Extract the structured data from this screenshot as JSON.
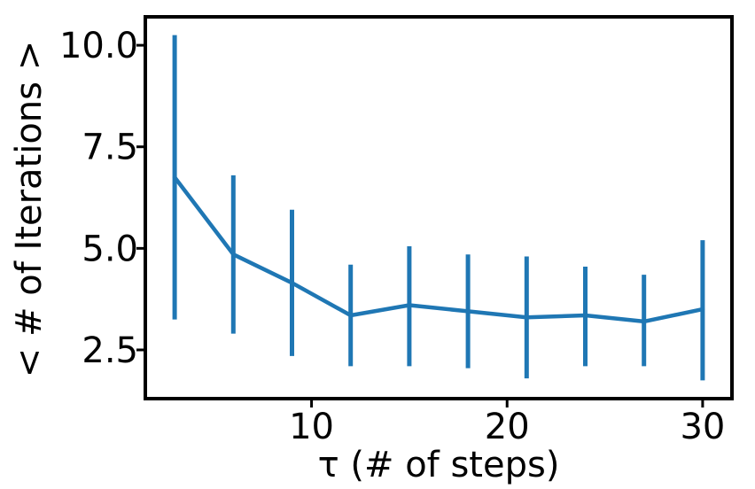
{
  "chart_data": {
    "type": "line",
    "title": "",
    "xlabel": "τ (# of steps)",
    "ylabel": "< # of Iterations >",
    "xlim": [
      1.5,
      31.5
    ],
    "ylim": [
      1.3,
      10.7
    ],
    "xticks": [
      10,
      20,
      30
    ],
    "xtick_labels": [
      "10",
      "20",
      "30"
    ],
    "yticks": [
      2.5,
      5.0,
      7.5,
      10.0
    ],
    "ytick_labels": [
      "2.5",
      "5.0",
      "7.5",
      "10.0"
    ],
    "grid": false,
    "legend": "none",
    "series": [
      {
        "color": "#1f77b4",
        "x": [
          3,
          6,
          9,
          12,
          15,
          18,
          21,
          24,
          27,
          30
        ],
        "y": [
          6.75,
          4.85,
          4.15,
          3.35,
          3.6,
          3.45,
          3.3,
          3.35,
          3.2,
          3.5
        ],
        "yerr_low": [
          3.25,
          2.9,
          2.35,
          2.1,
          2.1,
          2.05,
          1.8,
          2.1,
          2.1,
          1.75
        ],
        "yerr_high": [
          10.25,
          6.8,
          5.95,
          4.6,
          5.05,
          4.85,
          4.8,
          4.55,
          4.35,
          5.2
        ]
      }
    ]
  }
}
